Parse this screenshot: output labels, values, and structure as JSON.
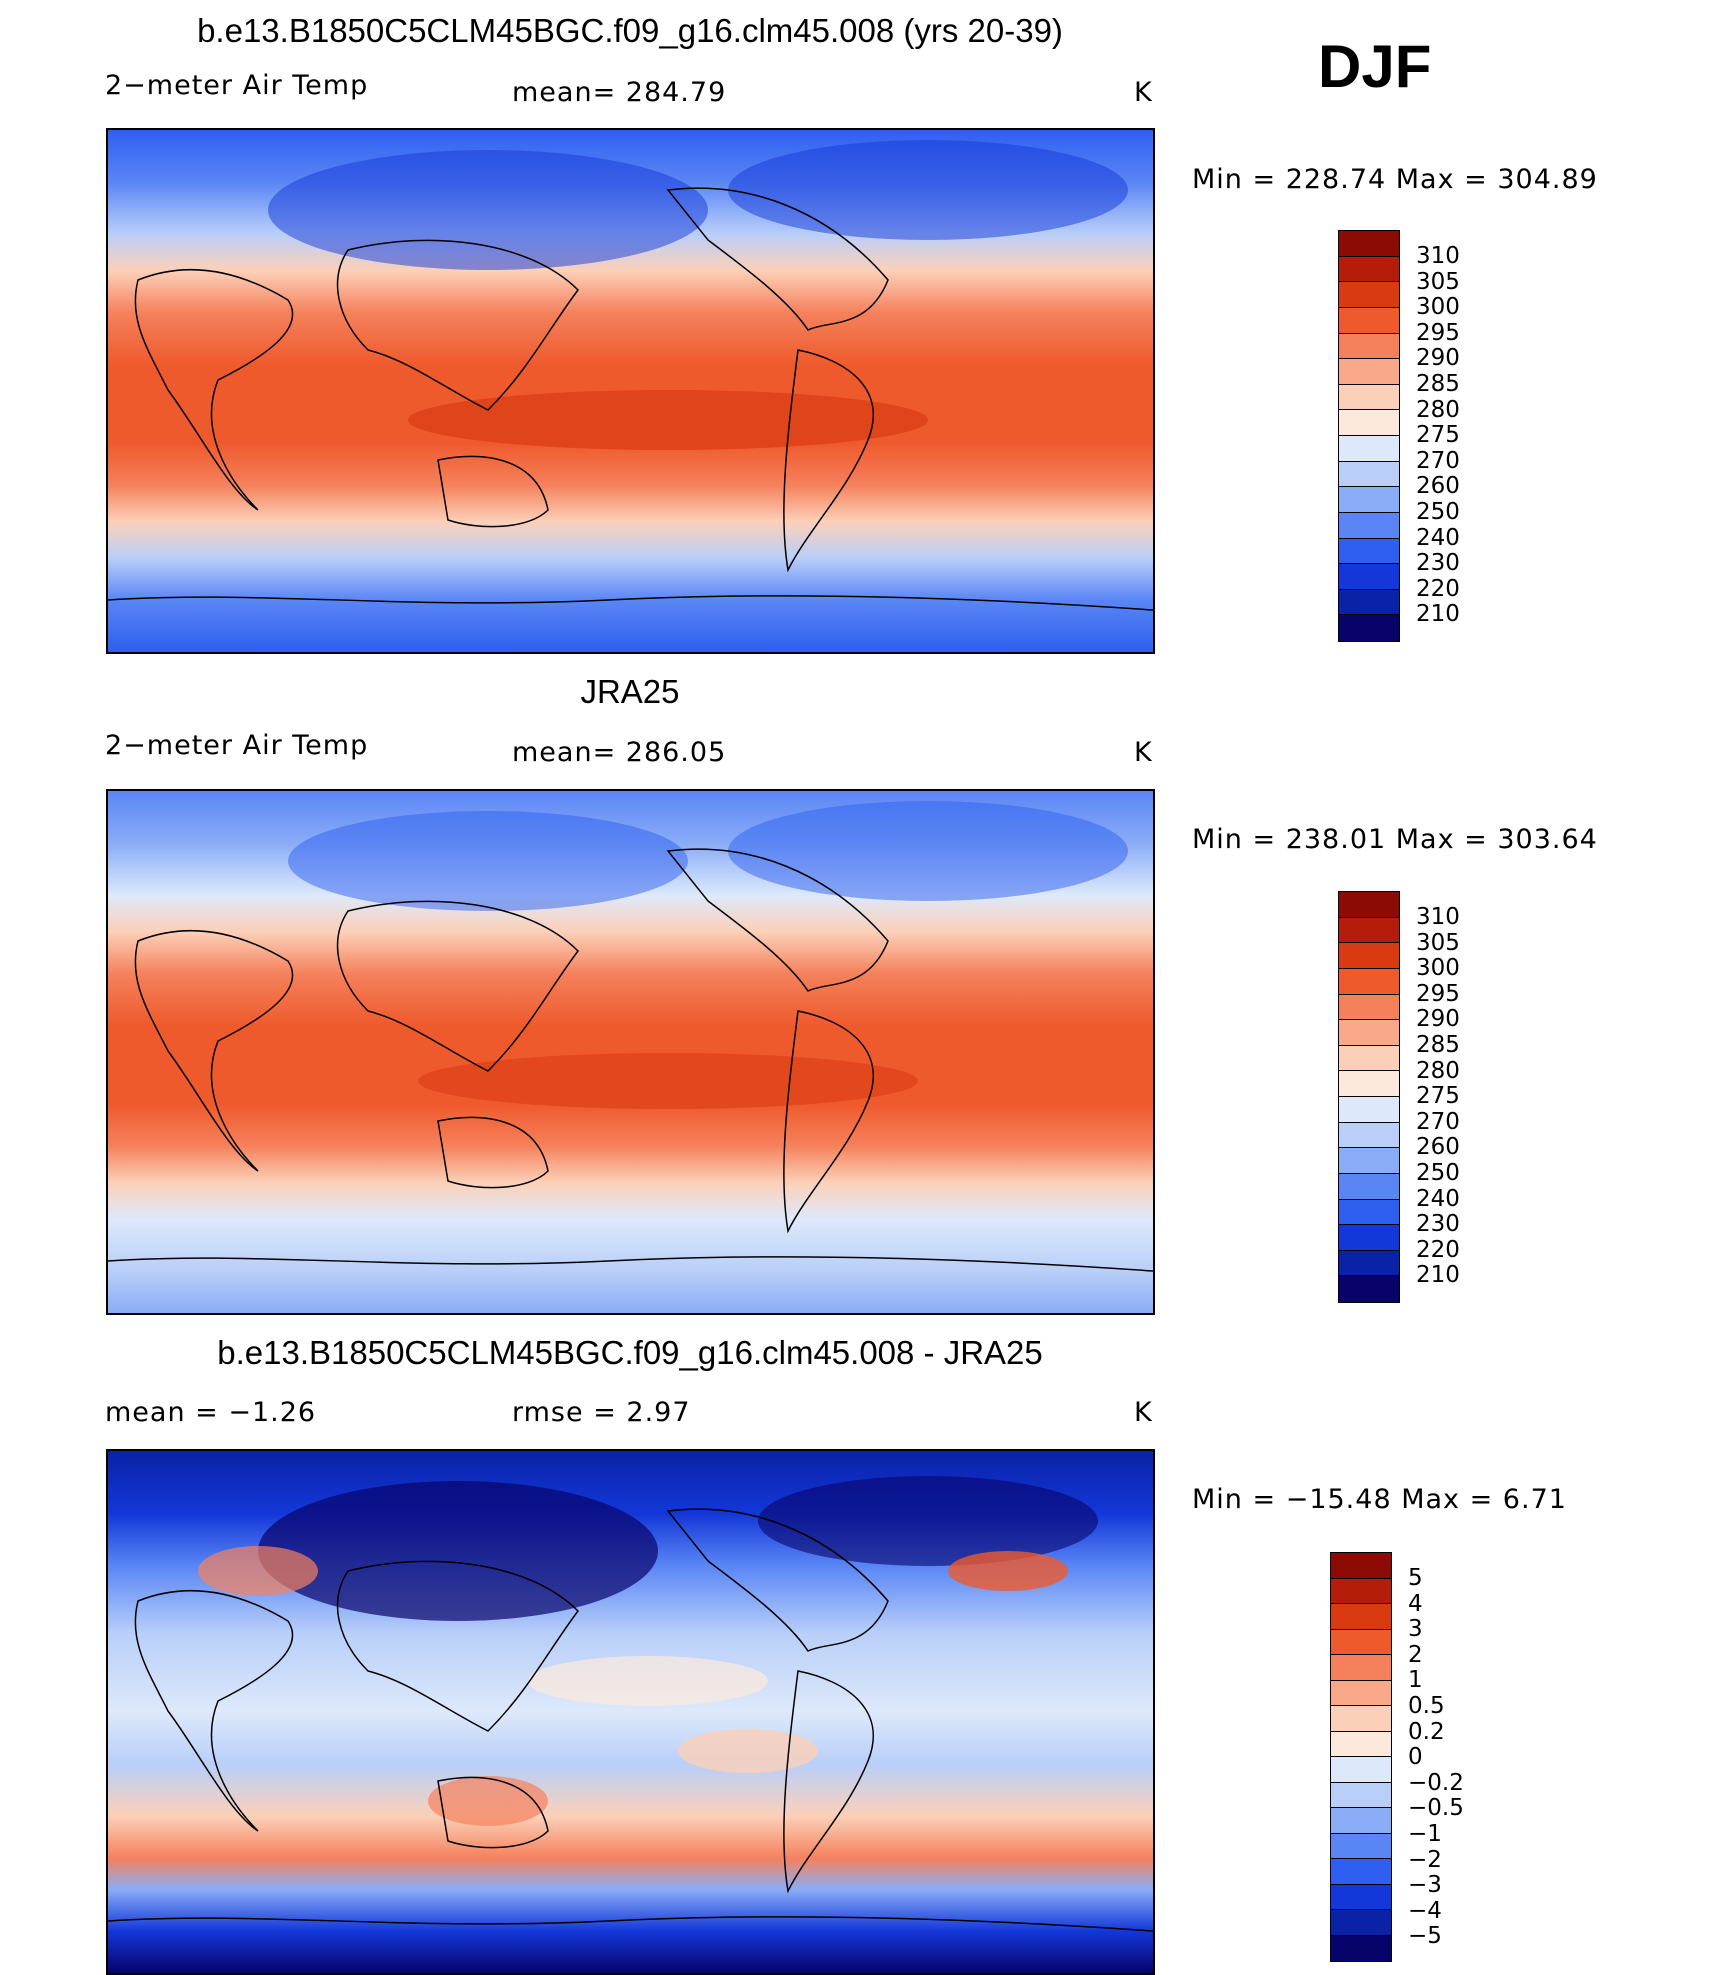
{
  "season": "DJF",
  "colors": {
    "abs_scale": [
      "#08036b",
      "#0a22a8",
      "#1337d8",
      "#2e5ff0",
      "#5a86f5",
      "#8aacf7",
      "#b9cff9",
      "#dde9fb",
      "#fde9dc",
      "#fcd0b8",
      "#f9a98a",
      "#f5815c",
      "#ef5a2d",
      "#d93a12",
      "#b51d0b",
      "#8c0b04"
    ],
    "diff_scale": [
      "#08036b",
      "#0a22a8",
      "#1337d8",
      "#2e5ff0",
      "#5a86f5",
      "#8aacf7",
      "#b9cff9",
      "#dde9fb",
      "#fde9dc",
      "#fcd0b8",
      "#f9a98a",
      "#f5815c",
      "#ef5a2d",
      "#d93a12",
      "#b51d0b",
      "#8c0b04"
    ]
  },
  "chart_data": [
    {
      "type": "heatmap",
      "title": "b.e13.B1850C5CLM45BGC.f09_g16.clm45.008 (yrs 20-39)",
      "variable": "2−meter Air Temp",
      "mean_text": "mean=  284.79",
      "units": "K",
      "minmax_text": "Min  =  228.74  Max  =  304.89",
      "min": 228.74,
      "max": 304.89,
      "mean": 284.79,
      "colorbar_labels": [
        "310",
        "305",
        "300",
        "295",
        "290",
        "285",
        "280",
        "275",
        "270",
        "260",
        "250",
        "240",
        "230",
        "220",
        "210"
      ]
    },
    {
      "type": "heatmap",
      "title": "JRA25",
      "variable": "2−meter Air Temp",
      "mean_text": "mean=  286.05",
      "units": "K",
      "minmax_text": "Min  =  238.01  Max  =  303.64",
      "min": 238.01,
      "max": 303.64,
      "mean": 286.05,
      "colorbar_labels": [
        "310",
        "305",
        "300",
        "295",
        "290",
        "285",
        "280",
        "275",
        "270",
        "260",
        "250",
        "240",
        "230",
        "220",
        "210"
      ]
    },
    {
      "type": "heatmap",
      "title": "b.e13.B1850C5CLM45BGC.f09_g16.clm45.008 - JRA25",
      "mean_text": "mean  =     −1.26",
      "rmse_text": "rmse  =     2.97",
      "units": "K",
      "minmax_text": "Min  =  −15.48  Max  =      6.71",
      "min": -15.48,
      "max": 6.71,
      "mean": -1.26,
      "rmse": 2.97,
      "colorbar_labels": [
        "5",
        "4",
        "3",
        "2",
        "1",
        "0.5",
        "0.2",
        "0",
        "−0.2",
        "−0.5",
        "−1",
        "−2",
        "−3",
        "−4",
        "−5"
      ]
    }
  ]
}
